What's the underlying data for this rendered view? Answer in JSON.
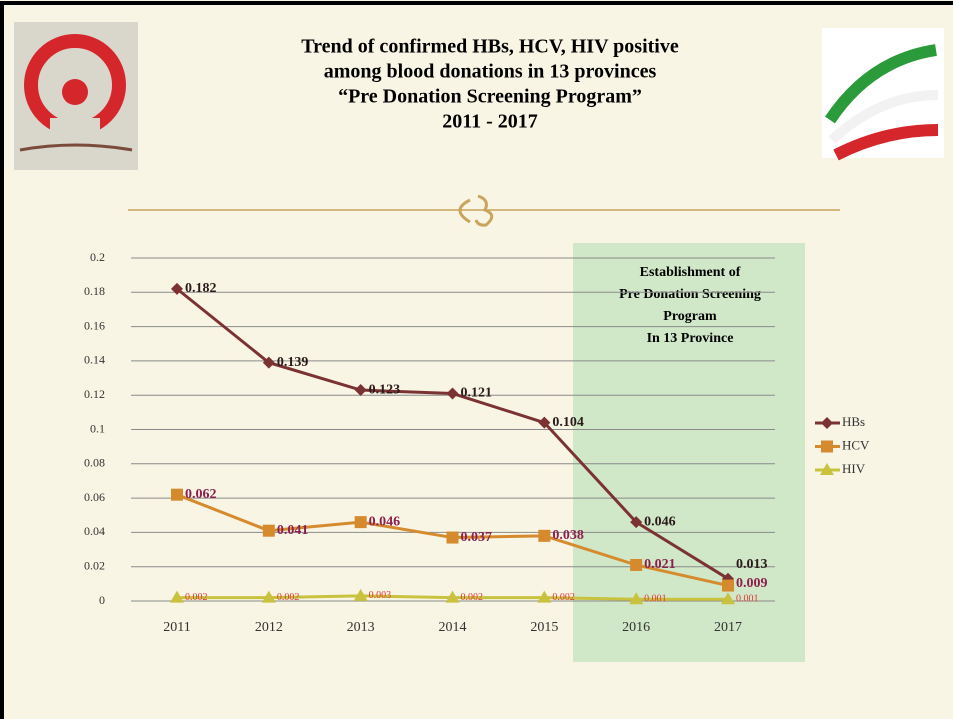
{
  "chart_data": {
    "type": "line",
    "title_lines": [
      "Trend of confirmed HBs, HCV, HIV positive",
      "among blood donations in 13 provinces",
      "“Pre Donation Screening Program”",
      "2011 - 2017"
    ],
    "annotation_lines": [
      "Establishment of",
      "Pre Donation Screening",
      "Program",
      "In 13 Province"
    ],
    "categories": [
      "2011",
      "2012",
      "2013",
      "2014",
      "2015",
      "2016",
      "2017"
    ],
    "series": [
      {
        "name": "HBs",
        "color": "#7b3232",
        "label_color": "#2a1a1a",
        "marker": "diamond",
        "values": [
          0.182,
          0.139,
          0.123,
          0.121,
          0.104,
          0.046,
          0.013
        ]
      },
      {
        "name": "HCV",
        "color": "#d68a2e",
        "label_color": "#8b1f4e",
        "marker": "square",
        "values": [
          0.062,
          0.041,
          0.046,
          0.037,
          0.038,
          0.021,
          0.009
        ]
      },
      {
        "name": "HIV",
        "color": "#c9c23e",
        "label_color": "#e03a3a",
        "marker": "triangle",
        "values": [
          0.002,
          0.002,
          0.003,
          0.002,
          0.002,
          0.001,
          0.001
        ]
      }
    ],
    "ylim": [
      0,
      0.2
    ],
    "yticks": [
      0,
      0.02,
      0.04,
      0.06,
      0.08,
      0.1,
      0.12,
      0.14,
      0.16,
      0.18,
      0.2
    ],
    "grid": true,
    "legend": "right"
  }
}
